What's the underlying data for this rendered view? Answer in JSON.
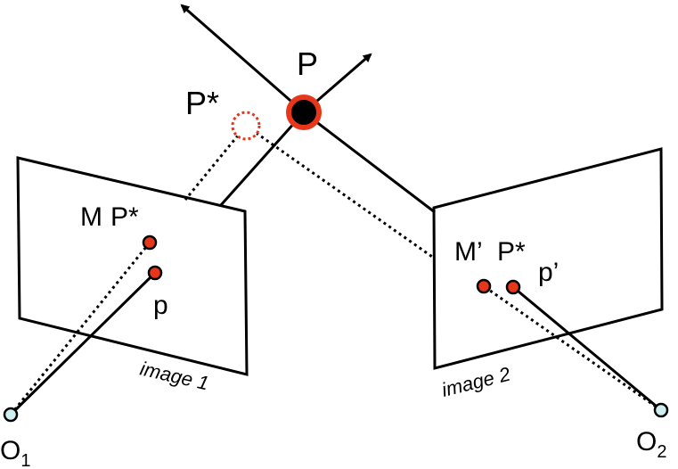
{
  "labels": {
    "P": "P",
    "P_star_top": "P*",
    "M": "M",
    "P_star_image1": "P*",
    "p": "p",
    "M_prime": "M’",
    "P_star_image2": "P*",
    "p_prime": "p’",
    "image1": "image 1",
    "image2": "image 2",
    "O": "O",
    "O1_sub": "1",
    "O2_sub": "2"
  },
  "colors": {
    "line": "#000000",
    "point_fill": "#e8361a",
    "P_ring": "#e8361a",
    "P_star_ring": "#e8361a",
    "camera_center_fill": "#cfeef0"
  }
}
